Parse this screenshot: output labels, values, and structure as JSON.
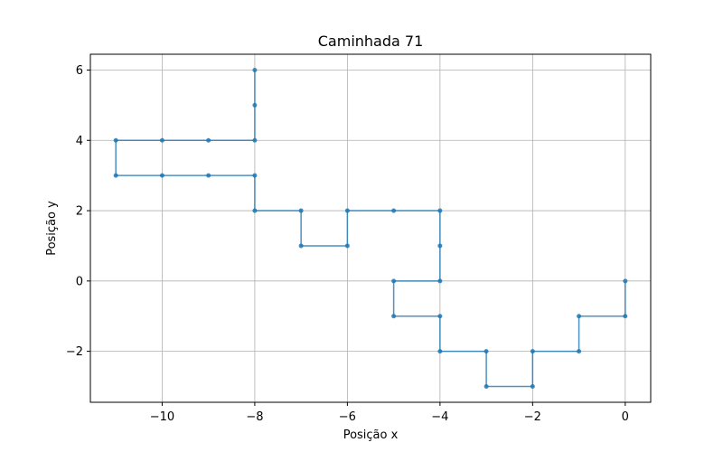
{
  "chart_data": {
    "type": "line",
    "title": "Caminhada 71",
    "xlabel": "Posição x",
    "ylabel": "Posição y",
    "xlim": [
      -11.55,
      0.55
    ],
    "ylim": [
      -3.45,
      6.45
    ],
    "xticks": [
      -10,
      -8,
      -6,
      -4,
      -2,
      0
    ],
    "yticks": [
      -2,
      0,
      2,
      4,
      6
    ],
    "xtick_labels": [
      "−10",
      "−8",
      "−6",
      "−4",
      "−2",
      "0"
    ],
    "ytick_labels": [
      "−2",
      "0",
      "2",
      "4",
      "6"
    ],
    "grid": true,
    "color": "#1f77b4",
    "series": [
      {
        "x": [
          0,
          0,
          -1,
          -1,
          -2,
          -2,
          -3,
          -3,
          -4,
          -4,
          -5,
          -5,
          -4,
          -4,
          -4,
          -5,
          -6,
          -6,
          -7,
          -7,
          -8,
          -8,
          -9,
          -10,
          -11,
          -11,
          -10,
          -9,
          -8,
          -8,
          -8
        ],
        "y": [
          0,
          -1,
          -1,
          -2,
          -2,
          -3,
          -3,
          -2,
          -2,
          -1,
          -1,
          0,
          0,
          1,
          2,
          2,
          2,
          1,
          1,
          2,
          2,
          3,
          3,
          3,
          3,
          4,
          4,
          4,
          4,
          5,
          6
        ]
      }
    ]
  }
}
